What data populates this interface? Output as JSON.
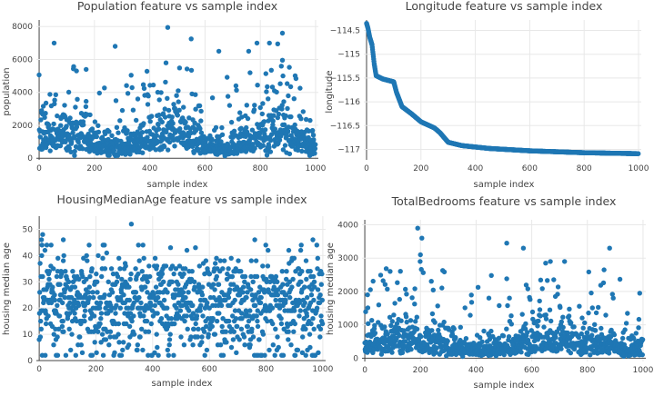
{
  "colors": {
    "marker": "#1f77b4",
    "grid": "#e8e8e8",
    "text": "#444444"
  },
  "chart_data": [
    {
      "type": "scatter",
      "title": "Population feature vs sample index",
      "xlabel": "sample index",
      "ylabel": "population",
      "xlim": [
        -10,
        1010
      ],
      "ylim": [
        -100,
        8400
      ],
      "xticks": [
        0,
        200,
        400,
        600,
        800,
        1000
      ],
      "yticks": [
        0,
        2000,
        4000,
        6000,
        8000
      ],
      "grid": true,
      "generator": "population",
      "notable_points": [
        [
          465,
          7950
        ],
        [
          550,
          7250
        ],
        [
          880,
          7600
        ],
        [
          863,
          6950
        ],
        [
          275,
          6800
        ],
        [
          650,
          6500
        ],
        [
          25,
          3350
        ],
        [
          170,
          5400
        ]
      ]
    },
    {
      "type": "scatter",
      "title": "Longitude feature vs sample index",
      "xlabel": "sample index",
      "ylabel": "longitude",
      "xlim": [
        -10,
        1010
      ],
      "ylim": [
        -117.22,
        -114.28
      ],
      "xticks": [
        0,
        200,
        400,
        600,
        800,
        1000
      ],
      "yticks": [
        -114.5,
        -115,
        -115.5,
        -116,
        -116.5,
        -117
      ],
      "ytick_labels": [
        "−114.5",
        "−115",
        "−115.5",
        "−116",
        "−116.5",
        "−117"
      ],
      "grid": true,
      "generator": "longitude",
      "curve": [
        [
          0,
          -114.35
        ],
        [
          5,
          -114.45
        ],
        [
          12,
          -114.65
        ],
        [
          20,
          -114.8
        ],
        [
          28,
          -115.2
        ],
        [
          35,
          -115.45
        ],
        [
          60,
          -115.52
        ],
        [
          100,
          -115.58
        ],
        [
          110,
          -115.8
        ],
        [
          130,
          -116.1
        ],
        [
          165,
          -116.25
        ],
        [
          200,
          -116.42
        ],
        [
          250,
          -116.55
        ],
        [
          270,
          -116.65
        ],
        [
          300,
          -116.85
        ],
        [
          350,
          -116.92
        ],
        [
          450,
          -116.98
        ],
        [
          600,
          -117.03
        ],
        [
          800,
          -117.07
        ],
        [
          1000,
          -117.09
        ]
      ]
    },
    {
      "type": "scatter",
      "title": "HousingMedianAge feature vs sample index",
      "xlabel": "sample index",
      "ylabel": "housing median age",
      "xlim": [
        -10,
        1010
      ],
      "ylim": [
        0,
        55
      ],
      "xticks": [
        0,
        200,
        400,
        600,
        800,
        1000
      ],
      "yticks": [
        0,
        10,
        20,
        30,
        40,
        50
      ],
      "grid": true,
      "generator": "age",
      "notable_points": [
        [
          325,
          52
        ],
        [
          12,
          48
        ],
        [
          8,
          46
        ],
        [
          85,
          46
        ],
        [
          760,
          46
        ],
        [
          965,
          46
        ],
        [
          65,
          2
        ],
        [
          290,
          2
        ]
      ]
    },
    {
      "type": "scatter",
      "title": "TotalBedrooms feature vs sample index",
      "xlabel": "sample index",
      "ylabel": "housing median age",
      "xlim": [
        -10,
        1010
      ],
      "ylim": [
        -100,
        4150
      ],
      "xticks": [
        0,
        200,
        400,
        600,
        800,
        1000
      ],
      "yticks": [
        0,
        1000,
        2000,
        3000,
        4000
      ],
      "grid": true,
      "generator": "bedrooms",
      "notable_points": [
        [
          190,
          3900
        ],
        [
          205,
          3600
        ],
        [
          510,
          3450
        ],
        [
          570,
          3300
        ],
        [
          880,
          3300
        ],
        [
          650,
          2850
        ],
        [
          860,
          2650
        ],
        [
          10,
          1900
        ],
        [
          200,
          3100
        ]
      ]
    }
  ]
}
